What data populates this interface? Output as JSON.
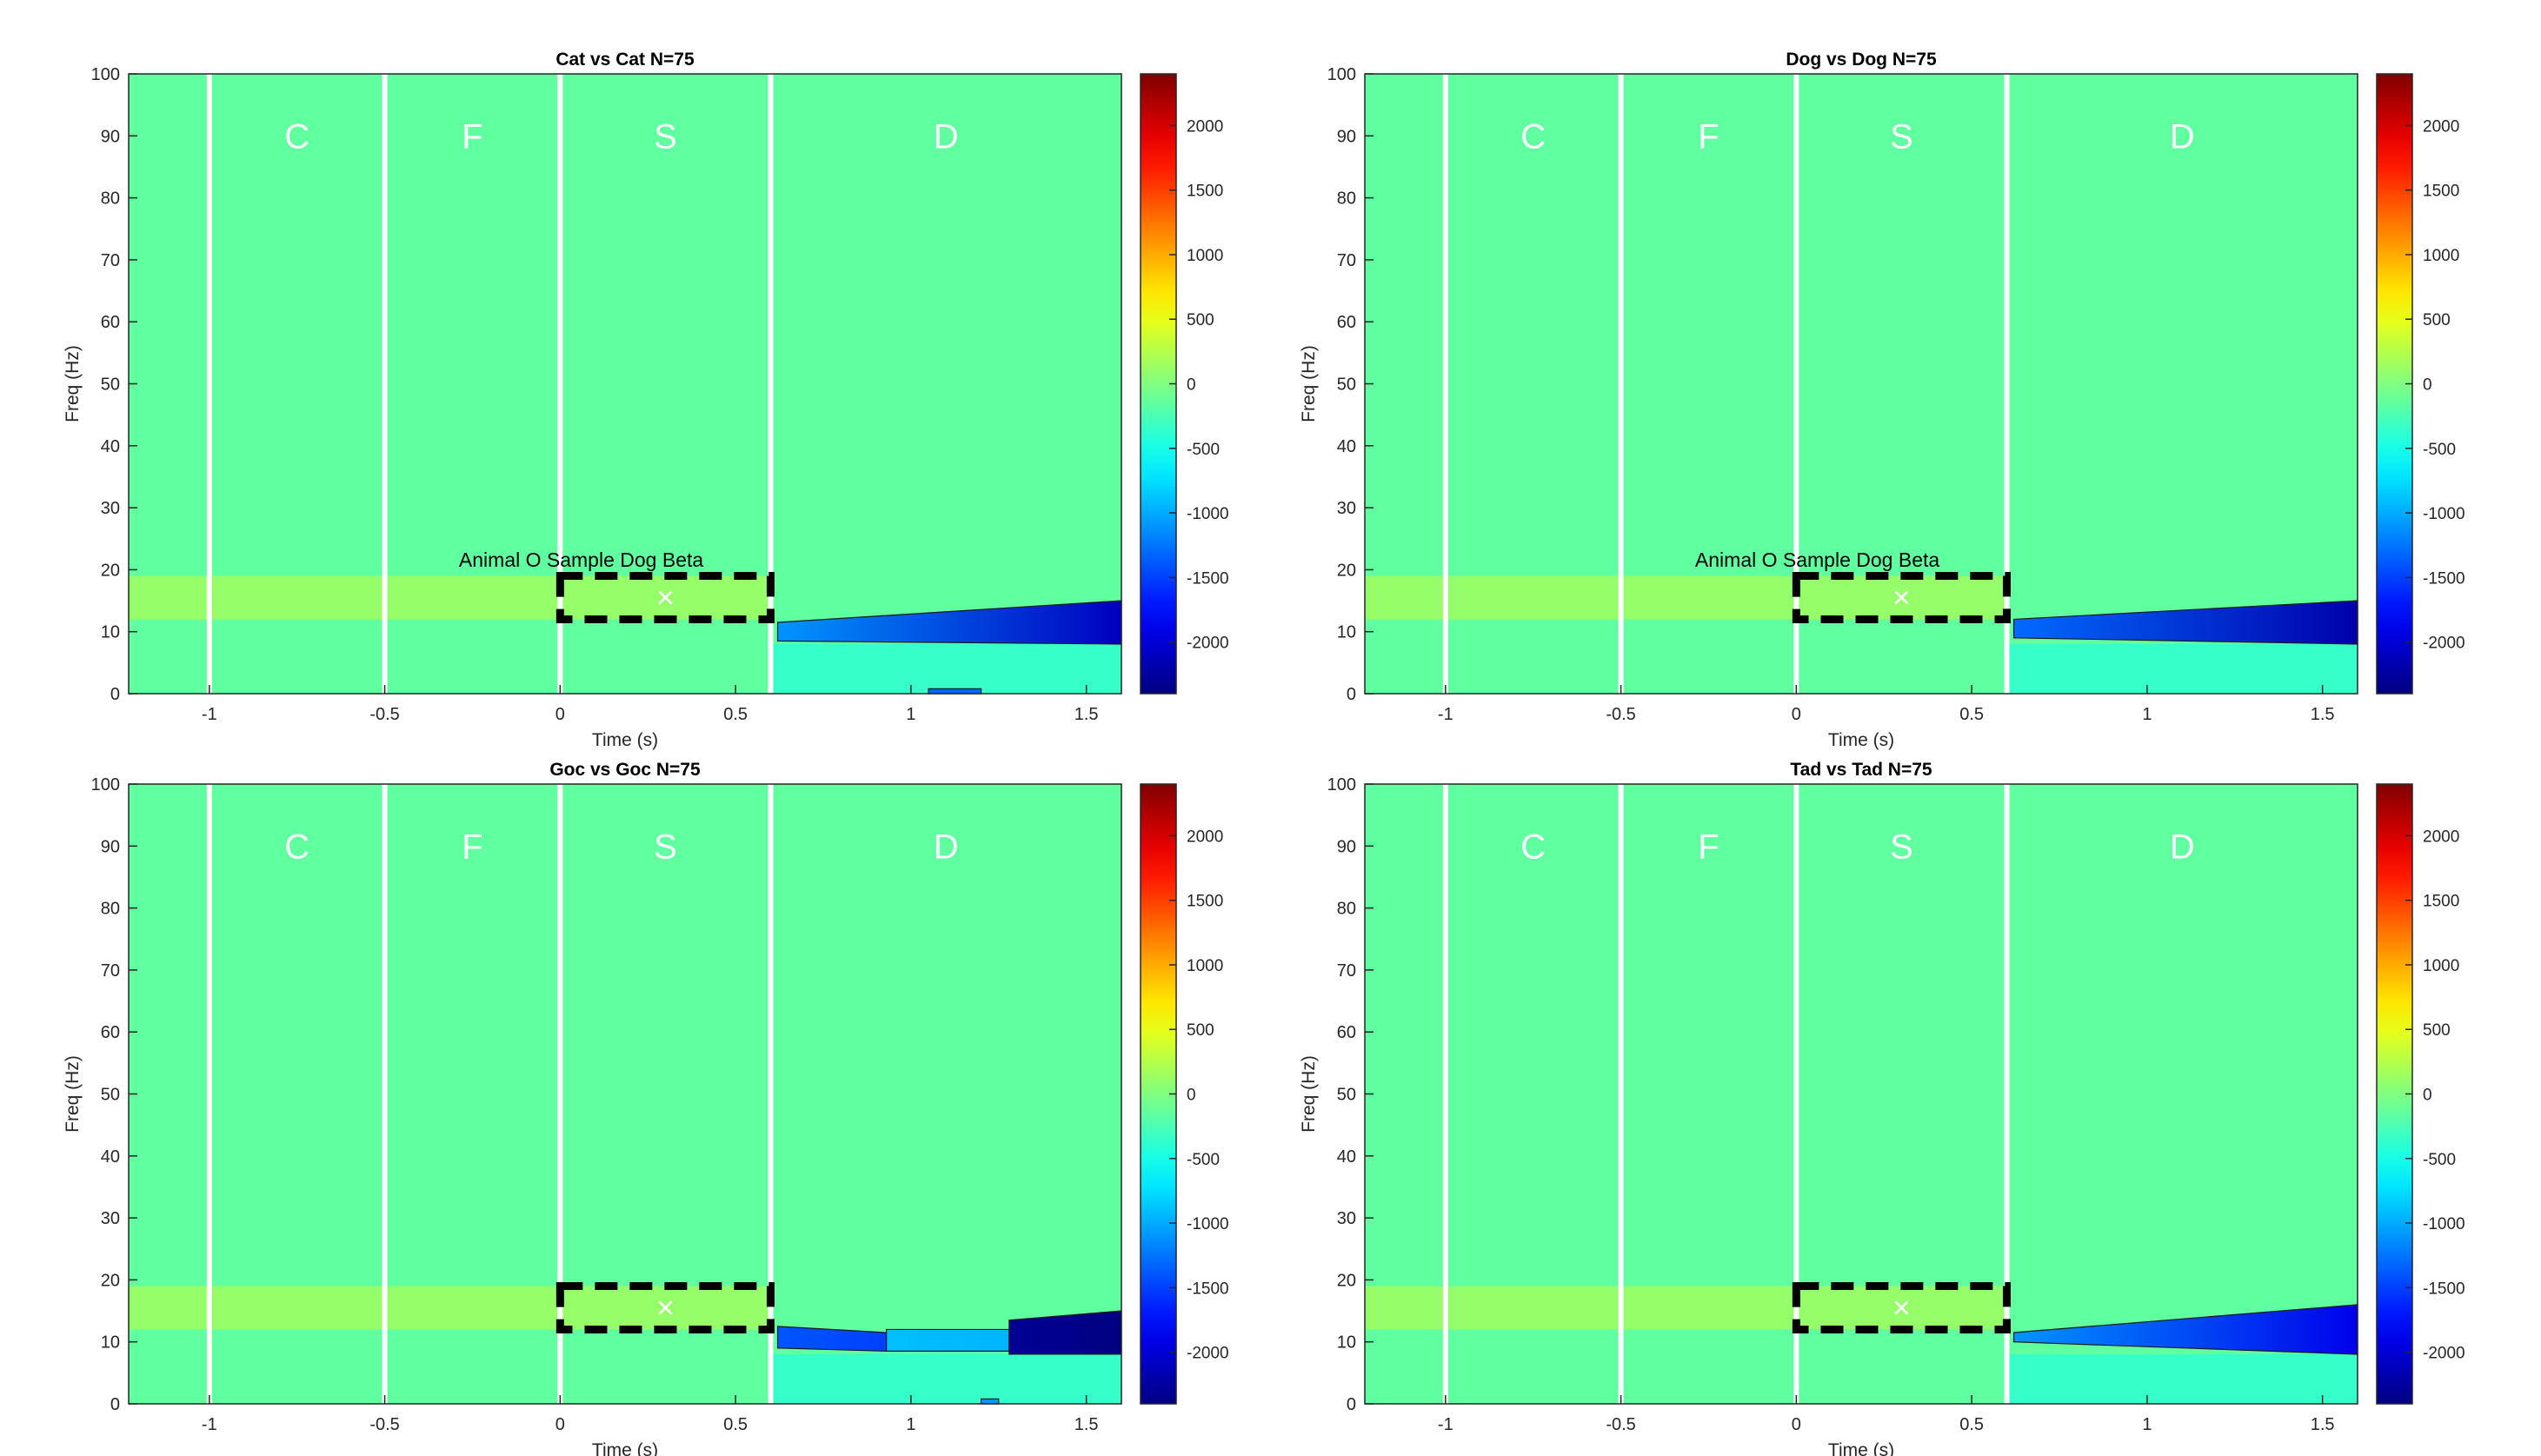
{
  "figure": {
    "background": "#ffffff"
  },
  "colormap": {
    "name": "jet",
    "clim": [
      -2400,
      2400
    ],
    "ticks": [
      -2000,
      -1500,
      -1000,
      -500,
      0,
      500,
      1000,
      1500,
      2000
    ],
    "tick_labels": [
      "-2000",
      "-1500",
      "-1000",
      "-500",
      "0",
      "500",
      "1000",
      "1500",
      "2000"
    ]
  },
  "chart_data": [
    {
      "type": "heatmap",
      "title": "Cat vs Cat N=75",
      "xlabel": "Time (s)",
      "ylabel": "Freq (Hz)",
      "xlim": [
        -1.23,
        1.6
      ],
      "ylim": [
        0,
        100
      ],
      "xticks": [
        -1,
        -0.5,
        0,
        0.5,
        1,
        1.5
      ],
      "xtick_labels": [
        "-1",
        "-0.5",
        "0",
        "0.5",
        "1",
        "1.5"
      ],
      "yticks": [
        0,
        10,
        20,
        30,
        40,
        50,
        60,
        70,
        80,
        90,
        100
      ],
      "ytick_labels": [
        "0",
        "10",
        "20",
        "30",
        "40",
        "50",
        "60",
        "70",
        "80",
        "90",
        "100"
      ],
      "phase_boundaries": [
        -1,
        -0.5,
        0,
        0.6
      ],
      "phase_labels": [
        {
          "label": "C",
          "x": -0.75,
          "y": 90
        },
        {
          "label": "F",
          "x": -0.25,
          "y": 90
        },
        {
          "label": "S",
          "x": 0.3,
          "y": 90
        },
        {
          "label": "D",
          "x": 1.1,
          "y": 90
        }
      ],
      "roi_box": {
        "t_start": 0,
        "t_end": 0.6,
        "f_low": 12,
        "f_high": 19,
        "marker": "×",
        "marker_t": 0.3,
        "marker_f": 15.5
      },
      "annotation": {
        "text": "Animal O Sample Dog Beta",
        "x": 0.06,
        "y": 20.5
      },
      "grid": false,
      "background_value": -150,
      "bands": [
        {
          "f_low": 12,
          "f_high": 19,
          "t_start": -1.23,
          "t_end": 0.6,
          "value": 150
        },
        {
          "f_low": 0,
          "f_high": 8,
          "t_start": 0.6,
          "t_end": 1.6,
          "value": -380
        }
      ],
      "clusters": [
        {
          "t_start": 0.62,
          "t_end": 1.6,
          "f_low": 8.5,
          "f_high": 11.5,
          "f_low_end": 8.0,
          "f_high_end": 15.0,
          "value_start": -1100,
          "value_end": -2100
        },
        {
          "t_start": 1.05,
          "t_end": 1.2,
          "f_low": 0.0,
          "f_high": 0.8,
          "f_low_end": 0.0,
          "f_high_end": 0.8,
          "value_start": -1300,
          "value_end": -1300
        }
      ]
    },
    {
      "type": "heatmap",
      "title": "Dog vs Dog N=75",
      "xlabel": "Time (s)",
      "ylabel": "Freq (Hz)",
      "xlim": [
        -1.23,
        1.6
      ],
      "ylim": [
        0,
        100
      ],
      "xticks": [
        -1,
        -0.5,
        0,
        0.5,
        1,
        1.5
      ],
      "xtick_labels": [
        "-1",
        "-0.5",
        "0",
        "0.5",
        "1",
        "1.5"
      ],
      "yticks": [
        0,
        10,
        20,
        30,
        40,
        50,
        60,
        70,
        80,
        90,
        100
      ],
      "ytick_labels": [
        "0",
        "10",
        "20",
        "30",
        "40",
        "50",
        "60",
        "70",
        "80",
        "90",
        "100"
      ],
      "phase_boundaries": [
        -1,
        -0.5,
        0,
        0.6
      ],
      "phase_labels": [
        {
          "label": "C",
          "x": -0.75,
          "y": 90
        },
        {
          "label": "F",
          "x": -0.25,
          "y": 90
        },
        {
          "label": "S",
          "x": 0.3,
          "y": 90
        },
        {
          "label": "D",
          "x": 1.1,
          "y": 90
        }
      ],
      "roi_box": {
        "t_start": 0,
        "t_end": 0.6,
        "f_low": 12,
        "f_high": 19,
        "marker": "×",
        "marker_t": 0.3,
        "marker_f": 15.5
      },
      "annotation": {
        "text": "Animal O Sample Dog Beta",
        "x": 0.06,
        "y": 20.5
      },
      "grid": false,
      "background_value": -150,
      "bands": [
        {
          "f_low": 12,
          "f_high": 19,
          "t_start": -1.23,
          "t_end": 0.6,
          "value": 150
        },
        {
          "f_low": 0,
          "f_high": 8,
          "t_start": 0.6,
          "t_end": 1.6,
          "value": -380
        }
      ],
      "clusters": [
        {
          "t_start": 0.62,
          "t_end": 1.6,
          "f_low": 9.0,
          "f_high": 12.0,
          "f_low_end": 8.0,
          "f_high_end": 15.0,
          "value_start": -1300,
          "value_end": -2200
        }
      ]
    },
    {
      "type": "heatmap",
      "title": "Goc vs Goc N=75",
      "xlabel": "Time (s)",
      "ylabel": "Freq (Hz)",
      "xlim": [
        -1.23,
        1.6
      ],
      "ylim": [
        0,
        100
      ],
      "xticks": [
        -1,
        -0.5,
        0,
        0.5,
        1,
        1.5
      ],
      "xtick_labels": [
        "-1",
        "-0.5",
        "0",
        "0.5",
        "1",
        "1.5"
      ],
      "yticks": [
        0,
        10,
        20,
        30,
        40,
        50,
        60,
        70,
        80,
        90,
        100
      ],
      "ytick_labels": [
        "0",
        "10",
        "20",
        "30",
        "40",
        "50",
        "60",
        "70",
        "80",
        "90",
        "100"
      ],
      "phase_boundaries": [
        -1,
        -0.5,
        0,
        0.6
      ],
      "phase_labels": [
        {
          "label": "C",
          "x": -0.75,
          "y": 90
        },
        {
          "label": "F",
          "x": -0.25,
          "y": 90
        },
        {
          "label": "S",
          "x": 0.3,
          "y": 90
        },
        {
          "label": "D",
          "x": 1.1,
          "y": 90
        }
      ],
      "roi_box": {
        "t_start": 0,
        "t_end": 0.6,
        "f_low": 12,
        "f_high": 19,
        "marker": "×",
        "marker_t": 0.3,
        "marker_f": 15.5
      },
      "annotation": null,
      "grid": false,
      "background_value": -150,
      "bands": [
        {
          "f_low": 12,
          "f_high": 19,
          "t_start": -1.23,
          "t_end": 0.6,
          "value": 150
        },
        {
          "f_low": 0,
          "f_high": 8,
          "t_start": 0.6,
          "t_end": 1.6,
          "value": -380
        }
      ],
      "clusters": [
        {
          "t_start": 0.62,
          "t_end": 0.93,
          "f_low": 9.0,
          "f_high": 12.5,
          "f_low_end": 8.5,
          "f_high_end": 11.5,
          "value_start": -1400,
          "value_end": -1500
        },
        {
          "t_start": 0.93,
          "t_end": 1.28,
          "f_low": 8.5,
          "f_high": 12.0,
          "f_low_end": 8.5,
          "f_high_end": 12.0,
          "value_start": -900,
          "value_end": -950
        },
        {
          "t_start": 1.28,
          "t_end": 1.6,
          "f_low": 8.0,
          "f_high": 13.5,
          "f_low_end": 8.0,
          "f_high_end": 15.0,
          "value_start": -2300,
          "value_end": -2400
        },
        {
          "t_start": 1.2,
          "t_end": 1.25,
          "f_low": 0.0,
          "f_high": 0.8,
          "f_low_end": 0.0,
          "f_high_end": 0.8,
          "value_start": -1100,
          "value_end": -1100
        }
      ]
    },
    {
      "type": "heatmap",
      "title": "Tad vs Tad N=75",
      "xlabel": "Time (s)",
      "ylabel": "Freq (Hz)",
      "xlim": [
        -1.23,
        1.6
      ],
      "ylim": [
        0,
        100
      ],
      "xticks": [
        -1,
        -0.5,
        0,
        0.5,
        1,
        1.5
      ],
      "xtick_labels": [
        "-1",
        "-0.5",
        "0",
        "0.5",
        "1",
        "1.5"
      ],
      "yticks": [
        0,
        10,
        20,
        30,
        40,
        50,
        60,
        70,
        80,
        90,
        100
      ],
      "ytick_labels": [
        "0",
        "10",
        "20",
        "30",
        "40",
        "50",
        "60",
        "70",
        "80",
        "90",
        "100"
      ],
      "phase_boundaries": [
        -1,
        -0.5,
        0,
        0.6
      ],
      "phase_labels": [
        {
          "label": "C",
          "x": -0.75,
          "y": 90
        },
        {
          "label": "F",
          "x": -0.25,
          "y": 90
        },
        {
          "label": "S",
          "x": 0.3,
          "y": 90
        },
        {
          "label": "D",
          "x": 1.1,
          "y": 90
        }
      ],
      "roi_box": {
        "t_start": 0,
        "t_end": 0.6,
        "f_low": 12,
        "f_high": 19,
        "marker": "×",
        "marker_t": 0.3,
        "marker_f": 15.5
      },
      "annotation": null,
      "grid": false,
      "background_value": -150,
      "bands": [
        {
          "f_low": 12,
          "f_high": 19,
          "t_start": -1.23,
          "t_end": 0.6,
          "value": 150
        },
        {
          "f_low": 0,
          "f_high": 8,
          "t_start": 0.6,
          "t_end": 1.6,
          "value": -380
        }
      ],
      "clusters": [
        {
          "t_start": 0.62,
          "t_end": 1.6,
          "f_low": 10.0,
          "f_high": 11.5,
          "f_low_end": 8.0,
          "f_high_end": 16.0,
          "value_start": -1100,
          "value_end": -1900
        }
      ]
    }
  ]
}
